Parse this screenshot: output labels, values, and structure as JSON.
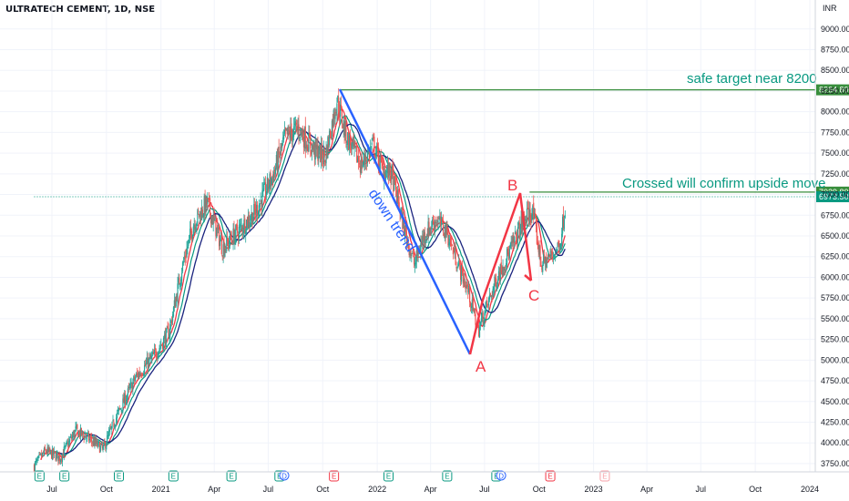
{
  "header": {
    "symbol_title": "ULTRATECH CEMENT, 1D, NSE"
  },
  "chart_data": {
    "type": "candlestick",
    "currency_label": "INR",
    "ylim": [
      3650,
      9350
    ],
    "y_ticks": [
      3750,
      4000,
      4250,
      4500,
      4750,
      5000,
      5250,
      5500,
      5750,
      6000,
      6250,
      6500,
      6750,
      7000,
      7250,
      7500,
      7750,
      8000,
      8250,
      8500,
      8750,
      9000
    ],
    "y_tick_labels": [
      "3750.00",
      "4000.00",
      "4250.00",
      "4500.00",
      "4750.00",
      "5000.00",
      "5250.00",
      "5500.00",
      "5750.00",
      "6000.00",
      "6250.00",
      "6500.00",
      "6750.00",
      "7000.00",
      "7250.00",
      "7500.00",
      "7750.00",
      "8000.00",
      "8250.00",
      "8500.00",
      "8750.00",
      "9000.00"
    ],
    "x_labels": [
      "Jul",
      "Oct",
      "2021",
      "Apr",
      "Jul",
      "Oct",
      "2022",
      "Apr",
      "Jul",
      "Oct",
      "2023",
      "Apr",
      "Jul",
      "Oct",
      "2024"
    ],
    "price_path": [
      [
        "2020-06-01",
        3720
      ],
      [
        "2020-06-20",
        3900
      ],
      [
        "2020-07-15",
        3820
      ],
      [
        "2020-08-10",
        4150
      ],
      [
        "2020-09-01",
        4050
      ],
      [
        "2020-09-25",
        3920
      ],
      [
        "2020-10-20",
        4350
      ],
      [
        "2020-11-20",
        4800
      ],
      [
        "2020-12-20",
        5050
      ],
      [
        "2021-01-15",
        5350
      ],
      [
        "2021-02-05",
        6100
      ],
      [
        "2021-02-25",
        6650
      ],
      [
        "2021-03-20",
        6900
      ],
      [
        "2021-04-15",
        6350
      ],
      [
        "2021-05-10",
        6550
      ],
      [
        "2021-06-10",
        6800
      ],
      [
        "2021-07-10",
        7250
      ],
      [
        "2021-07-30",
        7700
      ],
      [
        "2021-08-20",
        7800
      ],
      [
        "2021-09-15",
        7550
      ],
      [
        "2021-10-05",
        7450
      ],
      [
        "2021-10-25",
        8150
      ],
      [
        "2021-11-10",
        7700
      ],
      [
        "2021-12-05",
        7350
      ],
      [
        "2021-12-25",
        7600
      ],
      [
        "2022-01-10",
        7300
      ],
      [
        "2022-01-25",
        7250
      ],
      [
        "2022-02-15",
        6600
      ],
      [
        "2022-03-05",
        6150
      ],
      [
        "2022-03-20",
        6500
      ],
      [
        "2022-04-10",
        6700
      ],
      [
        "2022-04-28",
        6550
      ],
      [
        "2022-05-15",
        6200
      ],
      [
        "2022-06-05",
        5800
      ],
      [
        "2022-06-20",
        5350
      ],
      [
        "2022-07-05",
        5650
      ],
      [
        "2022-07-25",
        6050
      ],
      [
        "2022-08-15",
        6350
      ],
      [
        "2022-09-05",
        6700
      ],
      [
        "2022-09-20",
        6800
      ],
      [
        "2022-10-05",
        6150
      ],
      [
        "2022-10-20",
        6250
      ],
      [
        "2022-11-05",
        6400
      ],
      [
        "2022-11-15",
        6900
      ]
    ],
    "horizontal_levels": [
      {
        "label": "8264.80",
        "value": 8264.8,
        "color": "#388e3c",
        "start": "2021-11-01"
      },
      {
        "label": "7029.80",
        "value": 7029.8,
        "color": "#388e3c",
        "start": "2022-09-15"
      },
      {
        "label": "6973.50",
        "value": 6973.5,
        "color": "#089981",
        "start": "2020-06-01",
        "dotted": true
      }
    ],
    "annotations": [
      {
        "text": "safe target near 8200",
        "color": "#089981"
      },
      {
        "text": "Crossed will confirm upside move",
        "color": "#089981"
      },
      {
        "text": "down trend",
        "color": "#2962ff"
      },
      {
        "text": "A",
        "color": "#f23645"
      },
      {
        "text": "B",
        "color": "#f23645"
      },
      {
        "text": "C",
        "color": "#f23645"
      }
    ],
    "event_markers": [
      {
        "date": "2020-06-10",
        "type": "earnings",
        "text": "E"
      },
      {
        "date": "2020-07-22",
        "type": "earnings",
        "text": "E"
      },
      {
        "date": "2020-10-22",
        "type": "earnings",
        "text": "E"
      },
      {
        "date": "2021-01-22",
        "type": "earnings",
        "text": "E"
      },
      {
        "date": "2021-04-30",
        "type": "earnings",
        "text": "E"
      },
      {
        "date": "2021-07-20",
        "type": "earnings",
        "text": "E"
      },
      {
        "date": "2021-07-28",
        "type": "dividend",
        "text": "D"
      },
      {
        "date": "2021-10-20",
        "type": "earnings_down",
        "text": "E"
      },
      {
        "date": "2022-01-20",
        "type": "earnings",
        "text": "E"
      },
      {
        "date": "2022-04-29",
        "type": "earnings",
        "text": "E"
      },
      {
        "date": "2022-07-21",
        "type": "earnings",
        "text": "E"
      },
      {
        "date": "2022-07-29",
        "type": "dividend",
        "text": "D"
      },
      {
        "date": "2022-10-20",
        "type": "earnings_down",
        "text": "E"
      },
      {
        "date": "2023-01-20",
        "type": "upcoming",
        "text": "E"
      }
    ]
  }
}
